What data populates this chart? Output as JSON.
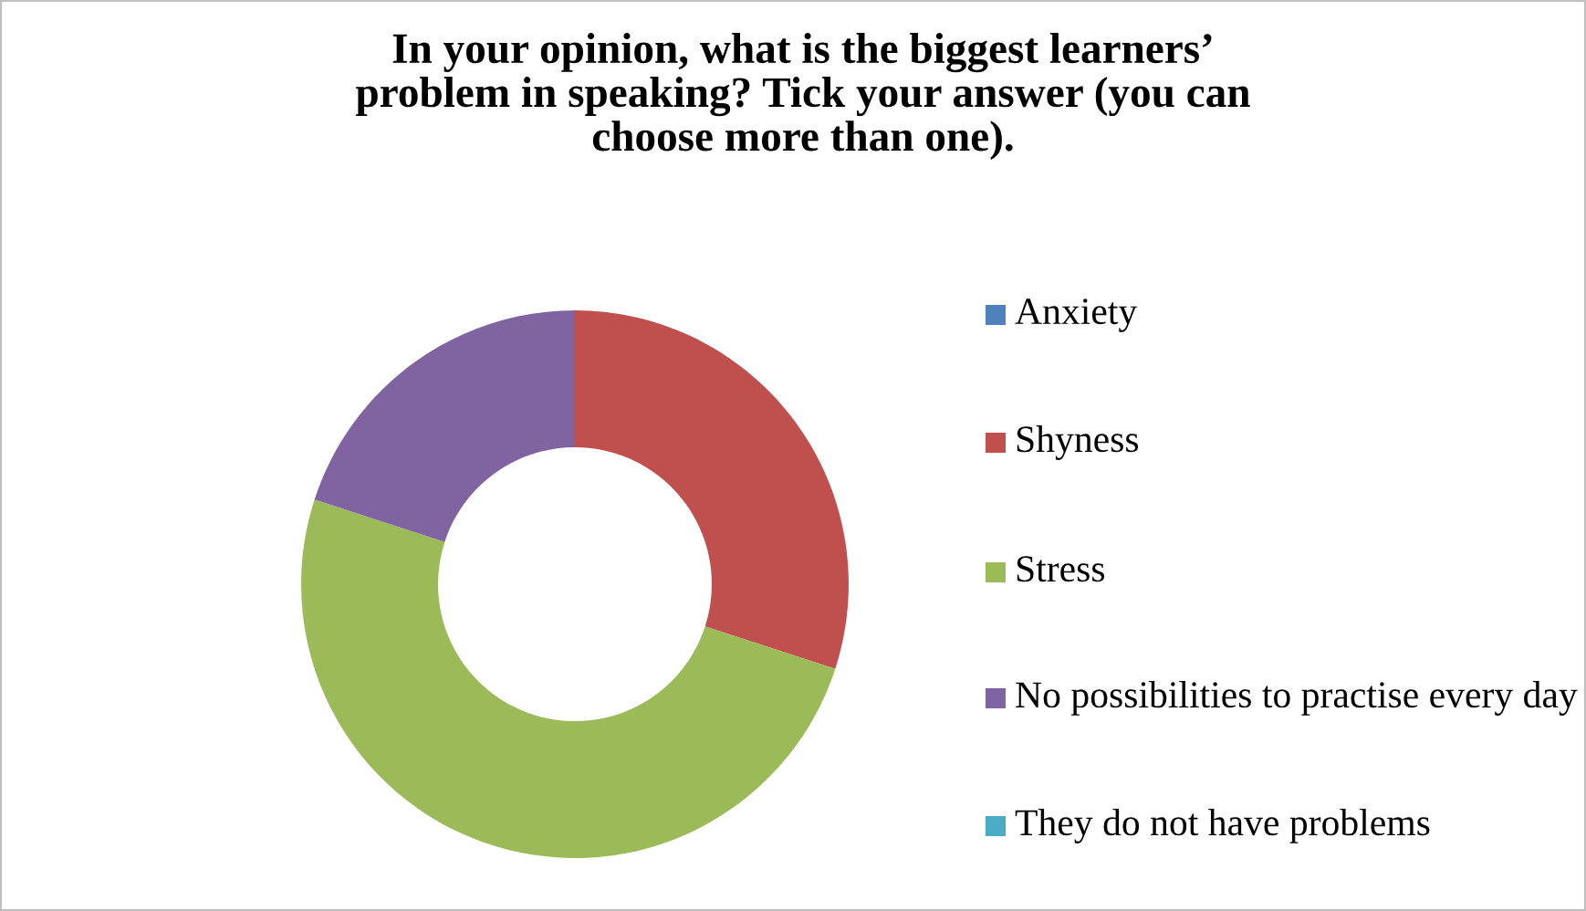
{
  "chart_data": {
    "type": "donut",
    "title": "In your opinion, what is the biggest learners’\nproblem in speaking? Tick your answer (you can\nchoose more than one).",
    "categories": [
      "Anxiety",
      "Shyness",
      "Stress",
      "No possibilities to practise every day",
      "They do not have problems"
    ],
    "values": [
      0,
      30,
      50,
      20,
      0
    ],
    "colors": [
      "#4f81bd",
      "#c0504d",
      "#9bbb59",
      "#8064a2",
      "#4bacc6"
    ],
    "legend": "right"
  }
}
